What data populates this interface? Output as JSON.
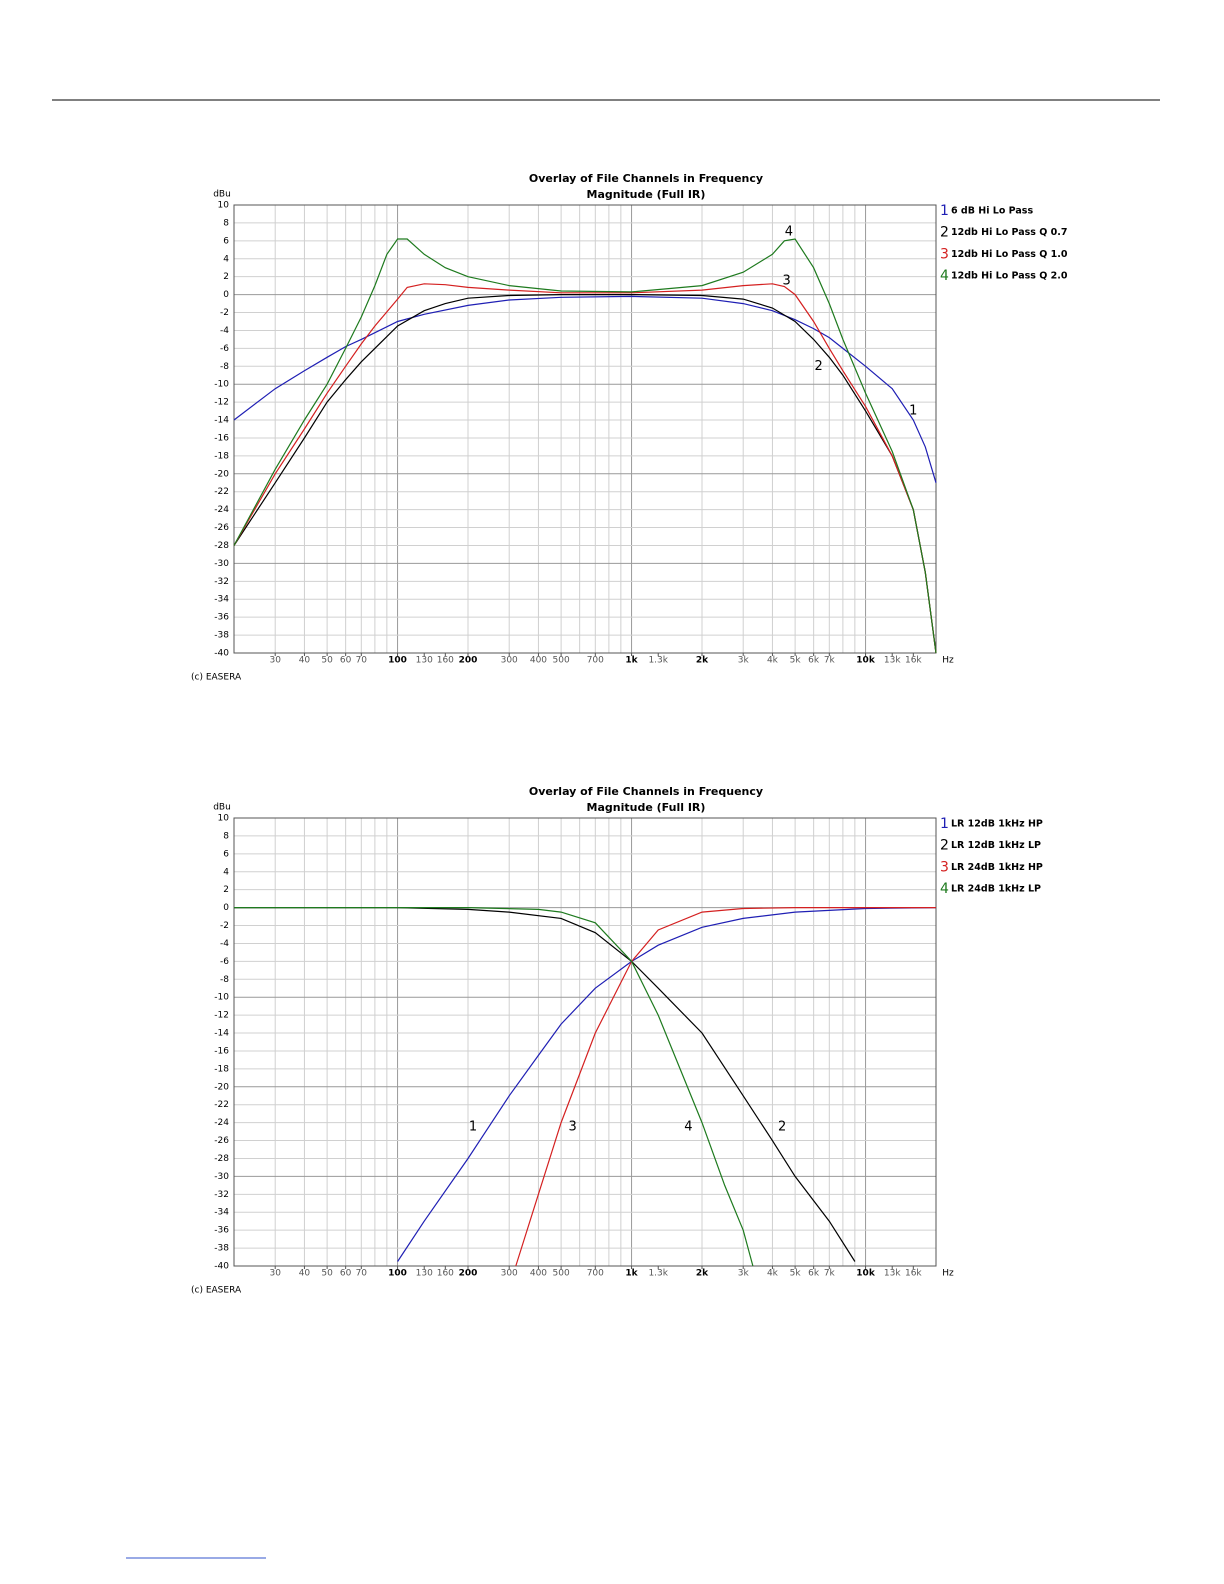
{
  "chart_data": [
    {
      "type": "line",
      "title": "Overlay of File Channels in Frequency",
      "subtitle": "Magnitude (Full IR)",
      "y_label": "dBu",
      "x_label": "Hz",
      "footer": "(c) EASERA",
      "xscale": "log",
      "grid": true,
      "legend": "right",
      "xlim": [
        20,
        20000
      ],
      "ylim": [
        -40,
        10
      ],
      "xticks": [
        30,
        40,
        50,
        60,
        70,
        100,
        130,
        160,
        200,
        300,
        400,
        500,
        700,
        {
          "value": 1000,
          "label": "1k"
        },
        {
          "value": 1300,
          "label": "1.3k"
        },
        {
          "value": 2000,
          "label": "2k"
        },
        {
          "value": 3000,
          "label": "3k"
        },
        {
          "value": 4000,
          "label": "4k"
        },
        {
          "value": 5000,
          "label": "5k"
        },
        {
          "value": 6000,
          "label": "6k"
        },
        {
          "value": 7000,
          "label": "7k"
        },
        {
          "value": 10000,
          "label": "10k"
        },
        {
          "value": 13000,
          "label": "13k"
        },
        {
          "value": 16000,
          "label": "16k"
        }
      ],
      "yticks": [
        10,
        8,
        6,
        4,
        2,
        0,
        -2,
        -4,
        -6,
        -8,
        -10,
        -12,
        -14,
        -16,
        -18,
        -20,
        -22,
        -24,
        -26,
        -28,
        -30,
        -32,
        -34,
        -36,
        -38,
        -40
      ],
      "series": [
        {
          "label": "1",
          "name": "6 dB Hi Lo Pass",
          "color": "#1f1fb4",
          "x": [
            20,
            30,
            40,
            50,
            60,
            70,
            100,
            130,
            200,
            300,
            500,
            1000,
            2000,
            3000,
            4000,
            5000,
            6000,
            7000,
            8000,
            10000,
            13000,
            16000,
            18000,
            20000
          ],
          "values": [
            -14,
            -10.5,
            -8.5,
            -7,
            -5.8,
            -5,
            -3,
            -2.2,
            -1.2,
            -0.6,
            -0.3,
            -0.2,
            -0.4,
            -1,
            -1.8,
            -2.8,
            -3.8,
            -4.8,
            -6,
            -8,
            -10.5,
            -14,
            -17,
            -21
          ],
          "annotation": {
            "x": 16000,
            "y": -13
          }
        },
        {
          "label": "2",
          "name": "12db Hi Lo Pass Q 0.7",
          "color": "#000000",
          "x": [
            20,
            30,
            40,
            50,
            60,
            70,
            100,
            130,
            160,
            200,
            300,
            500,
            1000,
            2000,
            3000,
            4000,
            5000,
            6000,
            7000,
            8000,
            10000,
            13000,
            16000,
            18000,
            20000
          ],
          "values": [
            -28,
            -21,
            -16,
            -12,
            -9.5,
            -7.5,
            -3.5,
            -1.8,
            -1,
            -0.4,
            -0.1,
            0,
            0,
            -0.1,
            -0.5,
            -1.5,
            -3,
            -5,
            -7,
            -9,
            -13,
            -18,
            -24,
            -31,
            -40
          ],
          "annotation": {
            "x": 6300,
            "y": -8
          }
        },
        {
          "label": "3",
          "name": "12db Hi Lo Pass Q 1.0",
          "color": "#d42020",
          "x": [
            20,
            30,
            40,
            50,
            60,
            70,
            80,
            100,
            110,
            130,
            160,
            200,
            300,
            500,
            1000,
            2000,
            3000,
            4000,
            4500,
            5000,
            6000,
            7000,
            8000,
            10000,
            13000,
            16000,
            18000,
            20000
          ],
          "values": [
            -28,
            -20,
            -15,
            -11,
            -8,
            -5.5,
            -3.5,
            -0.5,
            0.8,
            1.2,
            1.1,
            0.8,
            0.5,
            0.2,
            0.2,
            0.5,
            1,
            1.2,
            0.9,
            0,
            -3,
            -6,
            -8.5,
            -12.5,
            -18,
            -24,
            -31,
            -40
          ],
          "annotation": {
            "x": 4600,
            "y": 1.5
          }
        },
        {
          "label": "4",
          "name": "12db Hi Lo Pass Q 2.0",
          "color": "#1e7a1e",
          "x": [
            20,
            30,
            40,
            50,
            60,
            70,
            80,
            90,
            100,
            110,
            130,
            160,
            200,
            300,
            500,
            1000,
            2000,
            3000,
            4000,
            4500,
            5000,
            6000,
            7000,
            8000,
            10000,
            13000,
            16000,
            18000,
            20000
          ],
          "values": [
            -28,
            -19.5,
            -14,
            -10,
            -6,
            -2.5,
            1,
            4.5,
            6.2,
            6.2,
            4.5,
            3,
            2,
            1,
            0.4,
            0.3,
            1,
            2.5,
            4.5,
            6,
            6.2,
            3,
            -1,
            -5,
            -11,
            -17.5,
            -24,
            -31,
            -40
          ],
          "annotation": {
            "x": 4700,
            "y": 7
          }
        }
      ]
    },
    {
      "type": "line",
      "title": "Overlay of File Channels in Frequency",
      "subtitle": "Magnitude (Full IR)",
      "y_label": "dBu",
      "x_label": "Hz",
      "footer": "(c) EASERA",
      "xscale": "log",
      "grid": true,
      "legend": "right",
      "xlim": [
        20,
        20000
      ],
      "ylim": [
        -40,
        10
      ],
      "xticks": [
        30,
        40,
        50,
        60,
        70,
        100,
        130,
        160,
        200,
        300,
        400,
        500,
        700,
        {
          "value": 1000,
          "label": "1k"
        },
        {
          "value": 1300,
          "label": "1.3k"
        },
        {
          "value": 2000,
          "label": "2k"
        },
        {
          "value": 3000,
          "label": "3k"
        },
        {
          "value": 4000,
          "label": "4k"
        },
        {
          "value": 5000,
          "label": "5k"
        },
        {
          "value": 6000,
          "label": "6k"
        },
        {
          "value": 7000,
          "label": "7k"
        },
        {
          "value": 10000,
          "label": "10k"
        },
        {
          "value": 13000,
          "label": "13k"
        },
        {
          "value": 16000,
          "label": "16k"
        }
      ],
      "yticks": [
        10,
        8,
        6,
        4,
        2,
        0,
        -2,
        -4,
        -6,
        -8,
        -10,
        -12,
        -14,
        -16,
        -18,
        -20,
        -22,
        -24,
        -26,
        -28,
        -30,
        -32,
        -34,
        -36,
        -38,
        -40
      ],
      "series": [
        {
          "label": "1",
          "name": "LR 12dB 1kHz HP",
          "color": "#1f1fb4",
          "x": [
            100,
            130,
            200,
            300,
            400,
            500,
            700,
            1000,
            1300,
            2000,
            3000,
            5000,
            10000,
            20000
          ],
          "values": [
            -39.5,
            -35,
            -28,
            -21,
            -16.5,
            -13,
            -9,
            -6,
            -4.2,
            -2.2,
            -1.2,
            -0.5,
            -0.1,
            0
          ],
          "annotation": {
            "x": 210,
            "y": -24.5
          }
        },
        {
          "label": "2",
          "name": "LR 12dB 1kHz LP",
          "color": "#000000",
          "x": [
            20,
            100,
            200,
            300,
            500,
            700,
            1000,
            1300,
            2000,
            3000,
            4000,
            5000,
            7000,
            9000
          ],
          "values": [
            0,
            0,
            -0.2,
            -0.5,
            -1.2,
            -2.8,
            -6,
            -9,
            -14,
            -21,
            -26,
            -30,
            -35,
            -39.5
          ],
          "annotation": {
            "x": 4400,
            "y": -24.5
          }
        },
        {
          "label": "3",
          "name": "LR 24dB 1kHz HP",
          "color": "#d42020",
          "x": [
            320,
            400,
            500,
            700,
            1000,
            1300,
            2000,
            3000,
            5000,
            20000
          ],
          "values": [
            -40,
            -32,
            -24,
            -14,
            -6,
            -2.5,
            -0.5,
            -0.1,
            0,
            0
          ],
          "annotation": {
            "x": 560,
            "y": -24.5
          }
        },
        {
          "label": "4",
          "name": "LR 24dB 1kHz LP",
          "color": "#1e7a1e",
          "x": [
            20,
            200,
            400,
            500,
            700,
            1000,
            1300,
            1500,
            2000,
            2500,
            3000,
            3300
          ],
          "values": [
            0,
            0,
            -0.2,
            -0.5,
            -1.7,
            -6,
            -12,
            -16,
            -24,
            -31,
            -36,
            -40
          ],
          "annotation": {
            "x": 1750,
            "y": -24.5
          }
        }
      ]
    }
  ]
}
